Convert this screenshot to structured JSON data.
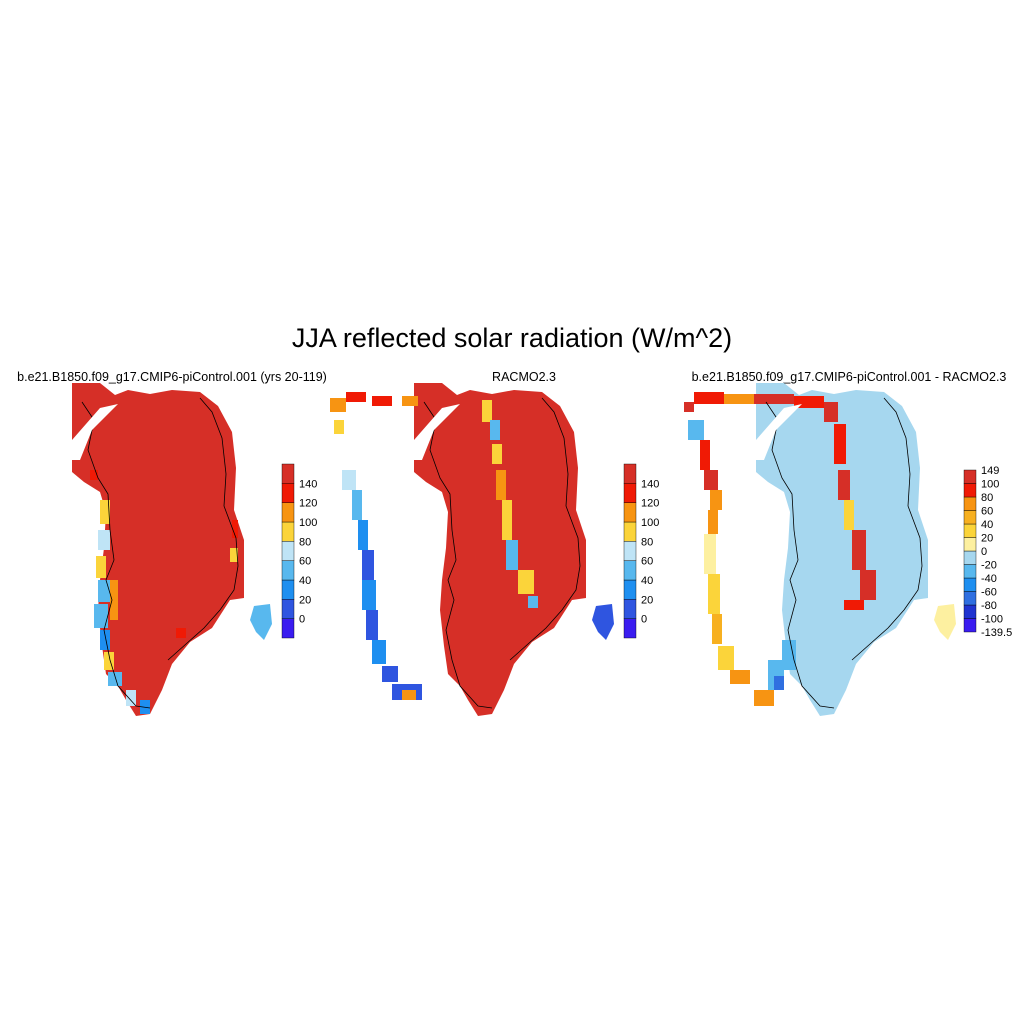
{
  "title": "JJA reflected solar radiation (W/m^2)",
  "panels": [
    {
      "title": "b.e21.B1850.f09_g17.CMIP6-piControl.001 (yrs 20-119)",
      "interior_color": "#d62f27",
      "colorbar": {
        "colors": [
          "#3a1cf0",
          "#2f55e0",
          "#1e8ff0",
          "#58b8ee",
          "#bfe4f6",
          "#fbd43a",
          "#f79412",
          "#f01a05",
          "#d62f27"
        ],
        "labels": [
          "0",
          "20",
          "40",
          "60",
          "80",
          "100",
          "120",
          "140"
        ]
      }
    },
    {
      "title": "RACMO2.3",
      "interior_color": "#d62f27",
      "colorbar": {
        "colors": [
          "#3a1cf0",
          "#2f55e0",
          "#1e8ff0",
          "#58b8ee",
          "#bfe4f6",
          "#fbd43a",
          "#f79412",
          "#f01a05",
          "#d62f27"
        ],
        "labels": [
          "0",
          "20",
          "40",
          "60",
          "80",
          "100",
          "120",
          "140"
        ]
      }
    },
    {
      "title": "b.e21.B1850.f09_g17.CMIP6-piControl.001 - RACMO2.3",
      "interior_color": "#a6d7ef",
      "colorbar": {
        "colors": [
          "#3a1cf0",
          "#2034d0",
          "#2f6fe0",
          "#1e8ff0",
          "#58b8ee",
          "#a6d7ef",
          "#fdf0a0",
          "#fbd43a",
          "#f7b020",
          "#f79412",
          "#f01a05",
          "#d62f27"
        ],
        "labels": [
          "-139.5",
          "-100",
          "-80",
          "-60",
          "-40",
          "-20",
          "0",
          "20",
          "40",
          "60",
          "80",
          "100",
          "149"
        ]
      }
    }
  ]
}
